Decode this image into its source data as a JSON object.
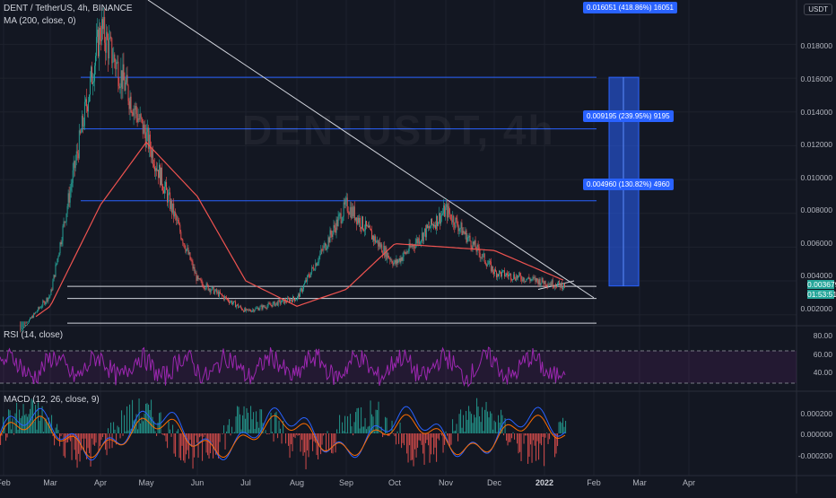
{
  "symbol": {
    "legend": "DENT / TetherUS, 4h, BINANCE",
    "watermark": "DENTUSDT, 4h",
    "currency": "USDT"
  },
  "indicators": {
    "ma_legend": "MA (200, close, 0)",
    "rsi_legend": "RSI (14, close)",
    "macd_legend": "MACD (12, 26, close, 9)"
  },
  "price_axis": {
    "labels": [
      "0.018000",
      "0.016000",
      "0.014000",
      "0.012000",
      "0.010000",
      "0.008000",
      "0.006000",
      "0.004000",
      "0.002000"
    ],
    "current_price": "0.003679",
    "countdown": "01:53:51"
  },
  "rsi_axis": {
    "labels": [
      "80.00",
      "60.00",
      "40.00"
    ]
  },
  "macd_axis": {
    "labels": [
      "0.000200",
      "0.000000",
      "-0.000200"
    ]
  },
  "time_axis": [
    "Feb",
    "Mar",
    "Apr",
    "May",
    "Jun",
    "Jul",
    "Aug",
    "Sep",
    "Oct",
    "Nov",
    "Dec",
    "2022",
    "Feb",
    "Mar",
    "Apr"
  ],
  "targets": [
    {
      "label": "0.016051 (418.86%) 16051"
    },
    {
      "label": "0.009195 (239.95%) 9195"
    },
    {
      "label": "0.004960 (130.82%) 4960"
    }
  ],
  "colors": {
    "background": "#131722",
    "up": "#26a69a",
    "down": "#ef5350",
    "ma": "#ef5350",
    "rsi": "#9c27b0",
    "macd": "#2962ff",
    "signal": "#ff6d00",
    "accent": "#2962ff",
    "current_price_tag": "#26a69a"
  },
  "chart_data": {
    "type": "line",
    "title": "DENT / TetherUS, 4h, BINANCE",
    "x": [
      "Feb",
      "Mar",
      "Apr",
      "May",
      "Jun",
      "Jul",
      "Aug",
      "Sep",
      "Oct",
      "Nov",
      "Dec",
      "2022"
    ],
    "series": [
      {
        "name": "DENT / TetherUS",
        "values": [
          0.001,
          0.0032,
          0.019,
          0.0125,
          0.004,
          0.0022,
          0.003,
          0.0085,
          0.005,
          0.0082,
          0.0045,
          0.0037
        ]
      },
      {
        "name": "MA (200, close, 0)",
        "values": [
          0.0012,
          0.0025,
          0.0085,
          0.0122,
          0.009,
          0.004,
          0.0025,
          0.0035,
          0.0062,
          0.006,
          0.0058,
          0.004
        ]
      }
    ],
    "ylim": [
      0.0014,
      0.0202
    ],
    "yticks": [
      0.002,
      0.004,
      0.006,
      0.008,
      0.01,
      0.012,
      0.014,
      0.016,
      0.018
    ],
    "horizontal_levels": [
      0.016051,
      0.013,
      0.00874,
      0.00368,
      0.00296,
      0.0015
    ],
    "grid": true
  }
}
